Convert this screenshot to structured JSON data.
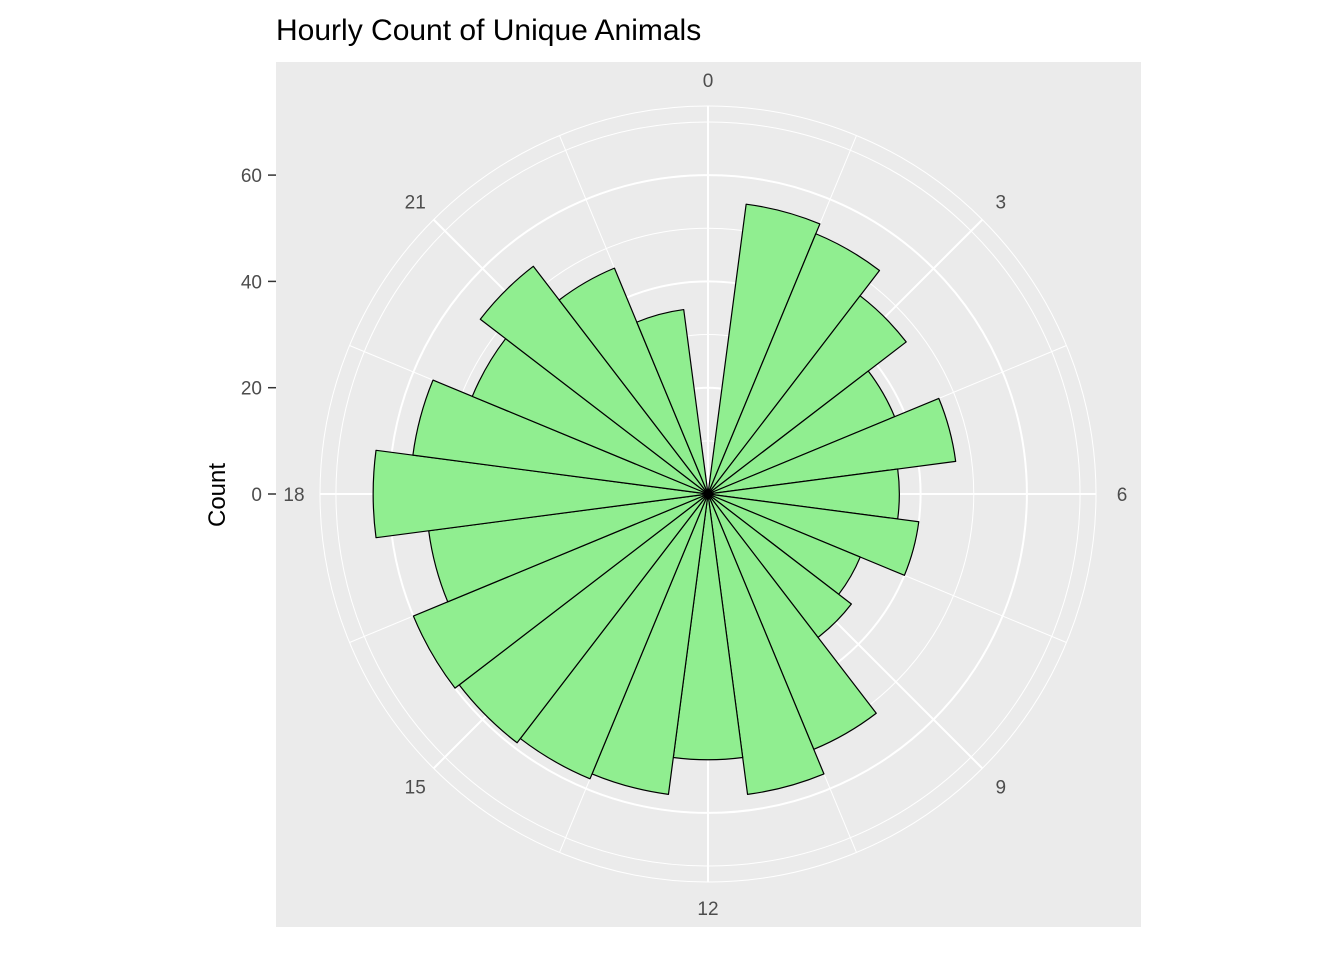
{
  "chart_data": {
    "type": "bar",
    "coord": "polar",
    "title": "Hourly Count of Unique Animals",
    "xlabel": "",
    "ylabel": "Count",
    "categories": [
      0,
      1,
      2,
      3,
      4,
      5,
      6,
      7,
      8,
      9,
      10,
      11,
      12,
      13,
      14,
      15,
      16,
      17,
      18,
      19,
      20,
      21,
      22,
      23
    ],
    "values": [
      0,
      55,
      53,
      47,
      38,
      47,
      36,
      40,
      31,
      34,
      52,
      57,
      50,
      57,
      58,
      59,
      60,
      53,
      63,
      56,
      48,
      54,
      46,
      35
    ],
    "theta_ticks": [
      {
        "hour": 0,
        "label": "0"
      },
      {
        "hour": 3,
        "label": "3"
      },
      {
        "hour": 6,
        "label": "6"
      },
      {
        "hour": 9,
        "label": "9"
      },
      {
        "hour": 12,
        "label": "12"
      },
      {
        "hour": 15,
        "label": "15"
      },
      {
        "hour": 18,
        "label": "18"
      },
      {
        "hour": 21,
        "label": "21"
      }
    ],
    "r_ticks": [
      0,
      20,
      40,
      60
    ],
    "r_max": 73,
    "grid": true,
    "colors": {
      "bar_fill": "#90EE90",
      "bar_stroke": "#000000",
      "panel": "#EBEBEB",
      "grid": "#FFFFFF",
      "tick_text": "#4D4D4D"
    }
  }
}
